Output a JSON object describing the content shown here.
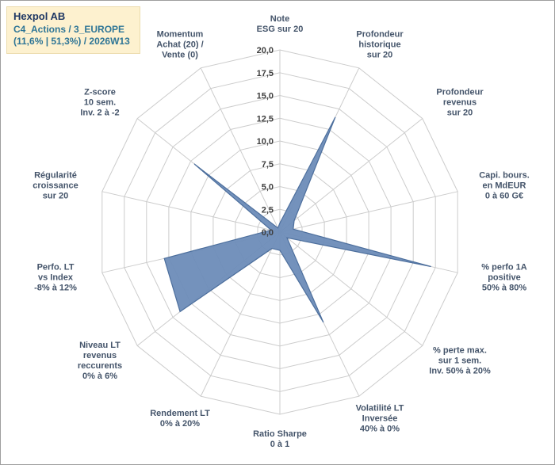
{
  "header": {
    "title": "Hexpol AB",
    "line2": "C4_Actions / 3_EUROPE",
    "line3": "(11,6% | 51,3%) / 2026W13",
    "bg_color": "#fdf1cf",
    "title_color": "#1f3864",
    "subtitle_color": "#2e7596"
  },
  "chart_data": {
    "type": "radar",
    "title": "",
    "categories": [
      {
        "name": "note-esg",
        "lines": [
          "Note",
          "ESG sur 20"
        ]
      },
      {
        "name": "profondeur-historique",
        "lines": [
          "Profondeur",
          "historique",
          "sur 20"
        ]
      },
      {
        "name": "profondeur-revenus",
        "lines": [
          "Profondeur",
          "revenus",
          "sur 20"
        ]
      },
      {
        "name": "capi-bours",
        "lines": [
          "Capi. bours.",
          "en MdEUR",
          "0 à 60 G€"
        ]
      },
      {
        "name": "perfo-1a-positive",
        "lines": [
          "% perfo 1A",
          "positive",
          "50% à 80%"
        ]
      },
      {
        "name": "perte-max-1sem",
        "lines": [
          "% perte max.",
          "sur 1 sem.",
          "Inv. 50% à 20%"
        ]
      },
      {
        "name": "volatilite-lt-inversee",
        "lines": [
          "Volatilité LT",
          "Inversée",
          "40% à 0%"
        ]
      },
      {
        "name": "ratio-sharpe",
        "lines": [
          "Ratio Sharpe",
          "0 à 1"
        ]
      },
      {
        "name": "rendement-lt",
        "lines": [
          "Rendement LT",
          "0% à 20%"
        ]
      },
      {
        "name": "niveau-lt-revenus",
        "lines": [
          "Niveau LT",
          "revenus",
          "reccurents",
          "0% à 6%"
        ]
      },
      {
        "name": "perfo-lt-vs-index",
        "lines": [
          "Perfo. LT",
          "vs Index",
          "-8% à 12%"
        ]
      },
      {
        "name": "regularite-croissance",
        "lines": [
          "Régularité",
          "croissance",
          "sur 20"
        ]
      },
      {
        "name": "z-score",
        "lines": [
          "Z-score",
          "10 sem.",
          "Inv. 2 à -2"
        ]
      },
      {
        "name": "momentum",
        "lines": [
          "Momentum",
          "Achat (20) /",
          "Vente (0)"
        ]
      }
    ],
    "values": [
      1,
      14,
      2,
      1.5,
      17,
      1,
      11,
      2,
      2,
      14,
      13,
      1,
      12,
      0.5
    ],
    "rmin": 0,
    "rmax": 20,
    "tick_interval": 2.5,
    "tick_labels": [
      "0,0",
      "2,5",
      "5,0",
      "7,5",
      "10,0",
      "12,5",
      "15,0",
      "17,5",
      "20,0"
    ],
    "fill_color": "#6d8cb8",
    "stroke_color": "#4d6f9d",
    "grid_color": "#cccccc",
    "tick_color": "#3f3f3f",
    "label_color": "#44546a",
    "legend_position": "none",
    "grid": true
  }
}
